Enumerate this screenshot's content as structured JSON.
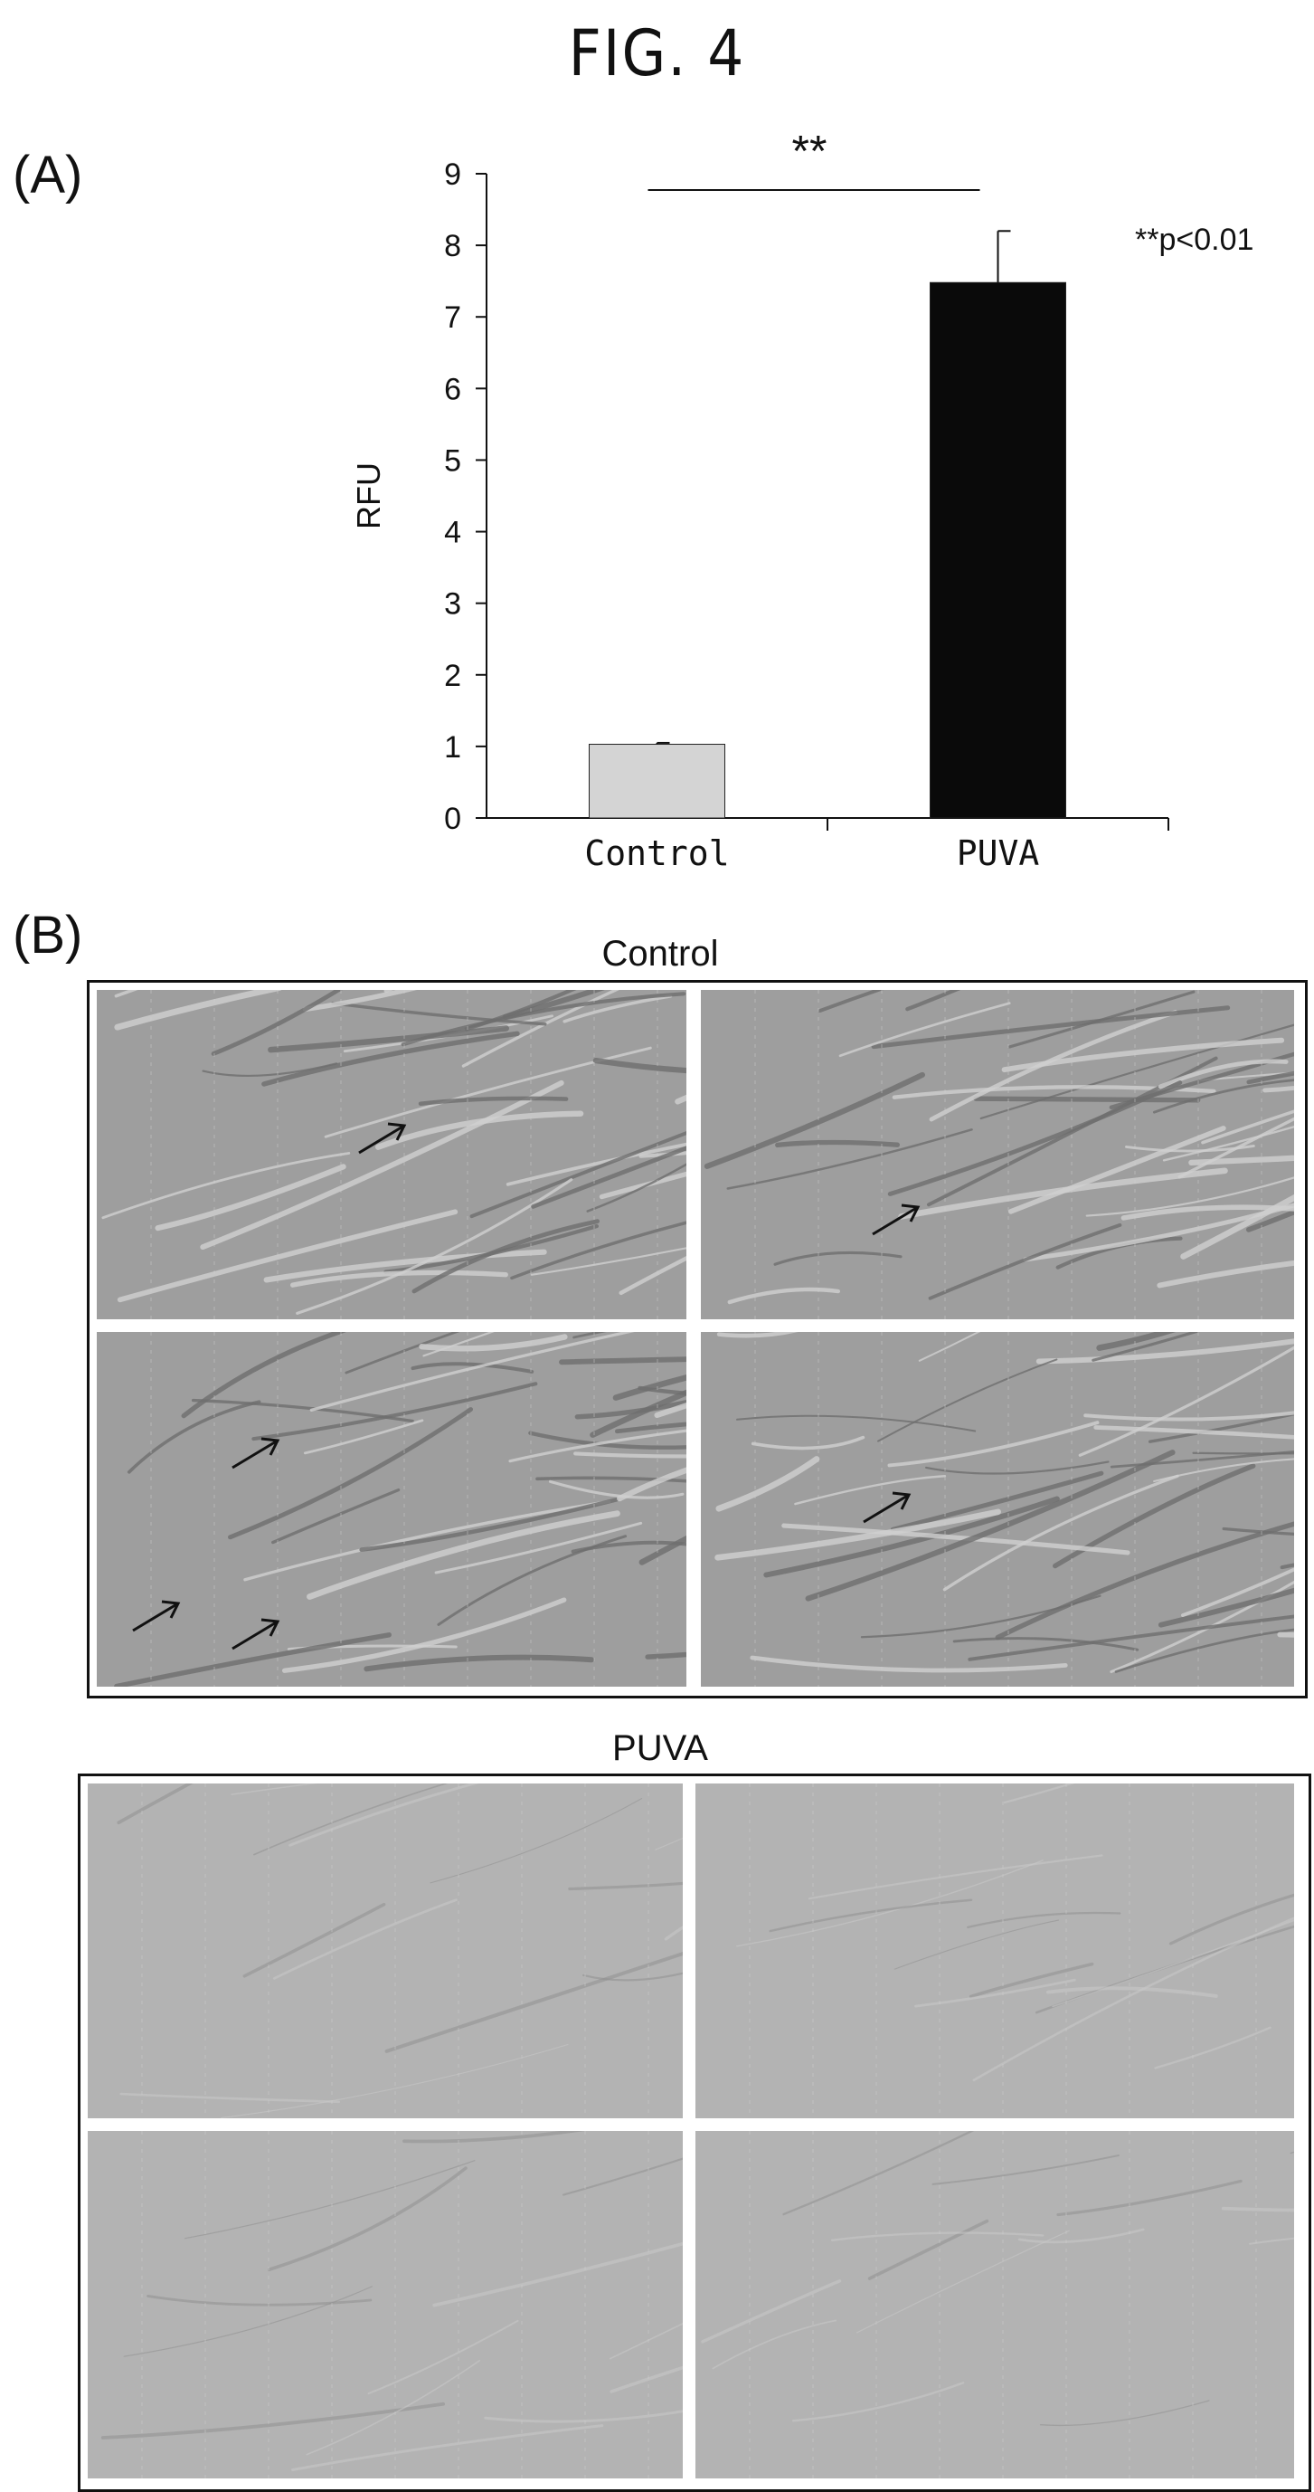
{
  "figure_title": "FIG. 4",
  "panel_a_label": "(A)",
  "panel_b_label": "(B)",
  "chart_data": {
    "type": "bar",
    "title": "",
    "xlabel": "",
    "ylabel": "RFU",
    "categories": [
      "Control",
      "PUVA"
    ],
    "values": [
      1.03,
      7.48
    ],
    "error_upper": [
      1.05,
      8.2
    ],
    "ylim": [
      0,
      9
    ],
    "yticks": [
      "0",
      "1",
      "2",
      "3",
      "4",
      "5",
      "6",
      "7",
      "8",
      "9"
    ],
    "bar_colors": [
      "#d4d4d4",
      "#0a0a0a"
    ],
    "grid": false,
    "significance_marker": "**",
    "annotation": "**p<0.01"
  },
  "panel_b": {
    "control_title": "Control",
    "puva_title": "PUVA"
  },
  "colors": {
    "control_bar": "#d4d4d4",
    "puva_bar": "#0a0a0a",
    "micrograph_bg": "#a9a9a9"
  }
}
